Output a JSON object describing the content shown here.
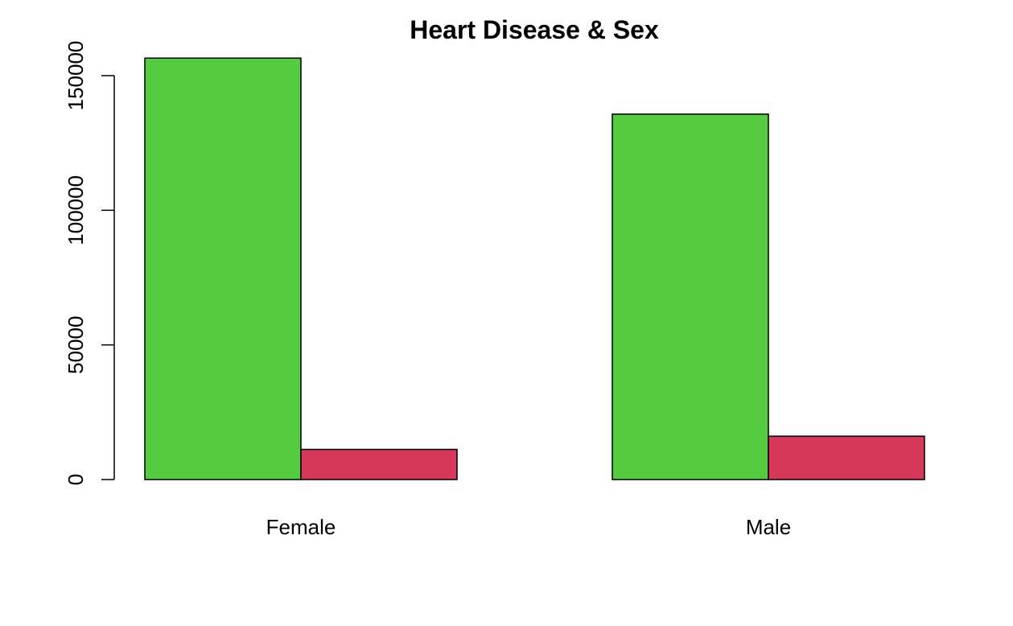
{
  "chart_data": {
    "type": "bar",
    "title": "Heart Disease & Sex",
    "xlabel": "",
    "ylabel": "",
    "categories": [
      "Female",
      "Male"
    ],
    "series": [
      {
        "values": [
          156500,
          135700
        ],
        "color": "#54cb40"
      },
      {
        "values": [
          11200,
          16100
        ],
        "color": "#d63a5a"
      }
    ],
    "ylim": [
      0,
      160000
    ],
    "yticks": [
      0,
      50000,
      100000,
      150000
    ],
    "ytick_labels": [
      "0",
      "50000",
      "100000",
      "150000"
    ],
    "grouping": "side-by-side",
    "grid": false,
    "legend": "none"
  }
}
